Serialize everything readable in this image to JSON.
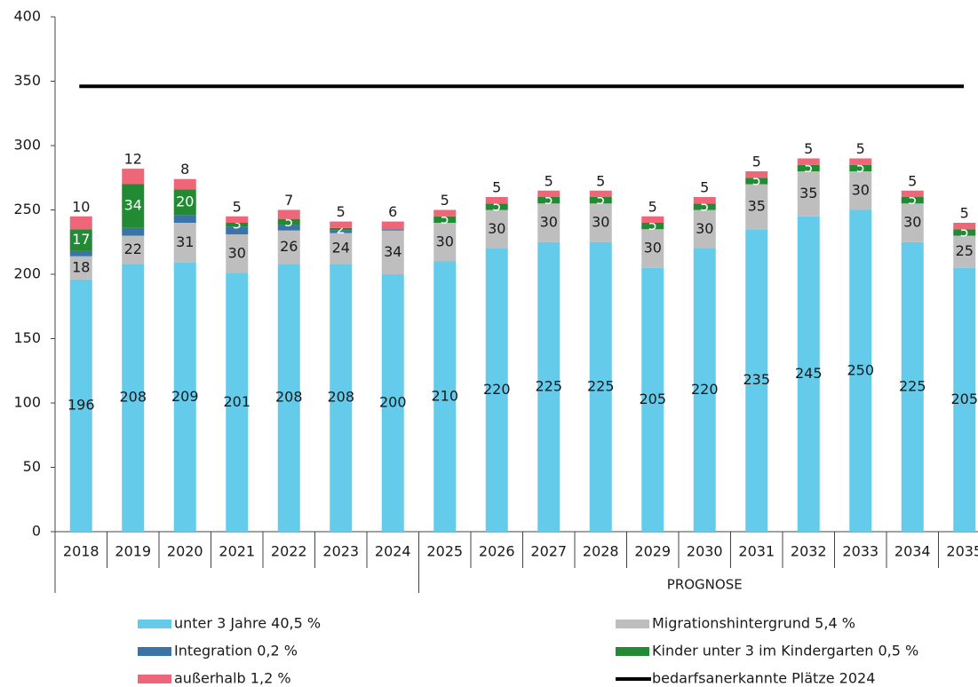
{
  "chart_data": {
    "type": "stacked_bar",
    "categories": [
      "2018",
      "2019",
      "2020",
      "2021",
      "2022",
      "2023",
      "2024",
      "2025",
      "2026",
      "2027",
      "2028",
      "2029",
      "2030",
      "2031",
      "2032",
      "2033",
      "2034",
      "2035"
    ],
    "x_group_label": "PROGNOSE",
    "ylim": [
      0,
      400
    ],
    "yticks": [
      0,
      50,
      100,
      150,
      200,
      250,
      300,
      350,
      400
    ],
    "series": [
      {
        "name": "unter 3 Jahre 40,5 %",
        "color": "#65cbeb",
        "values": [
          196,
          208,
          209,
          201,
          208,
          208,
          200,
          210,
          220,
          225,
          225,
          205,
          220,
          235,
          245,
          250,
          225,
          205
        ]
      },
      {
        "name": "Migrationshintergrund 5,4 %",
        "color": "#bebebe",
        "values": [
          18,
          22,
          31,
          30,
          26,
          24,
          34,
          30,
          30,
          30,
          30,
          30,
          30,
          35,
          35,
          30,
          30,
          25
        ]
      },
      {
        "name": "Integration 0,2 %",
        "color": "#3a73a8",
        "values": [
          4,
          6,
          6,
          6,
          4,
          2,
          1,
          0,
          0,
          0,
          0,
          0,
          0,
          0,
          0,
          0,
          0,
          0
        ]
      },
      {
        "name": "Kinder unter 3 im Kindergarten 0,5 %",
        "color": "#218a32",
        "values": [
          17,
          34,
          20,
          3,
          5,
          2,
          null,
          5,
          5,
          5,
          5,
          5,
          5,
          5,
          5,
          5,
          5,
          5
        ]
      },
      {
        "name": "außerhalb 1,2 %",
        "color": "#ee6677",
        "values": [
          10,
          12,
          8,
          5,
          7,
          5,
          6,
          5,
          5,
          5,
          5,
          5,
          5,
          5,
          5,
          5,
          5,
          5
        ]
      }
    ],
    "line": {
      "name": "bedarfsanerkannte Plätze 2024",
      "color": "#000000",
      "value": 346
    }
  }
}
